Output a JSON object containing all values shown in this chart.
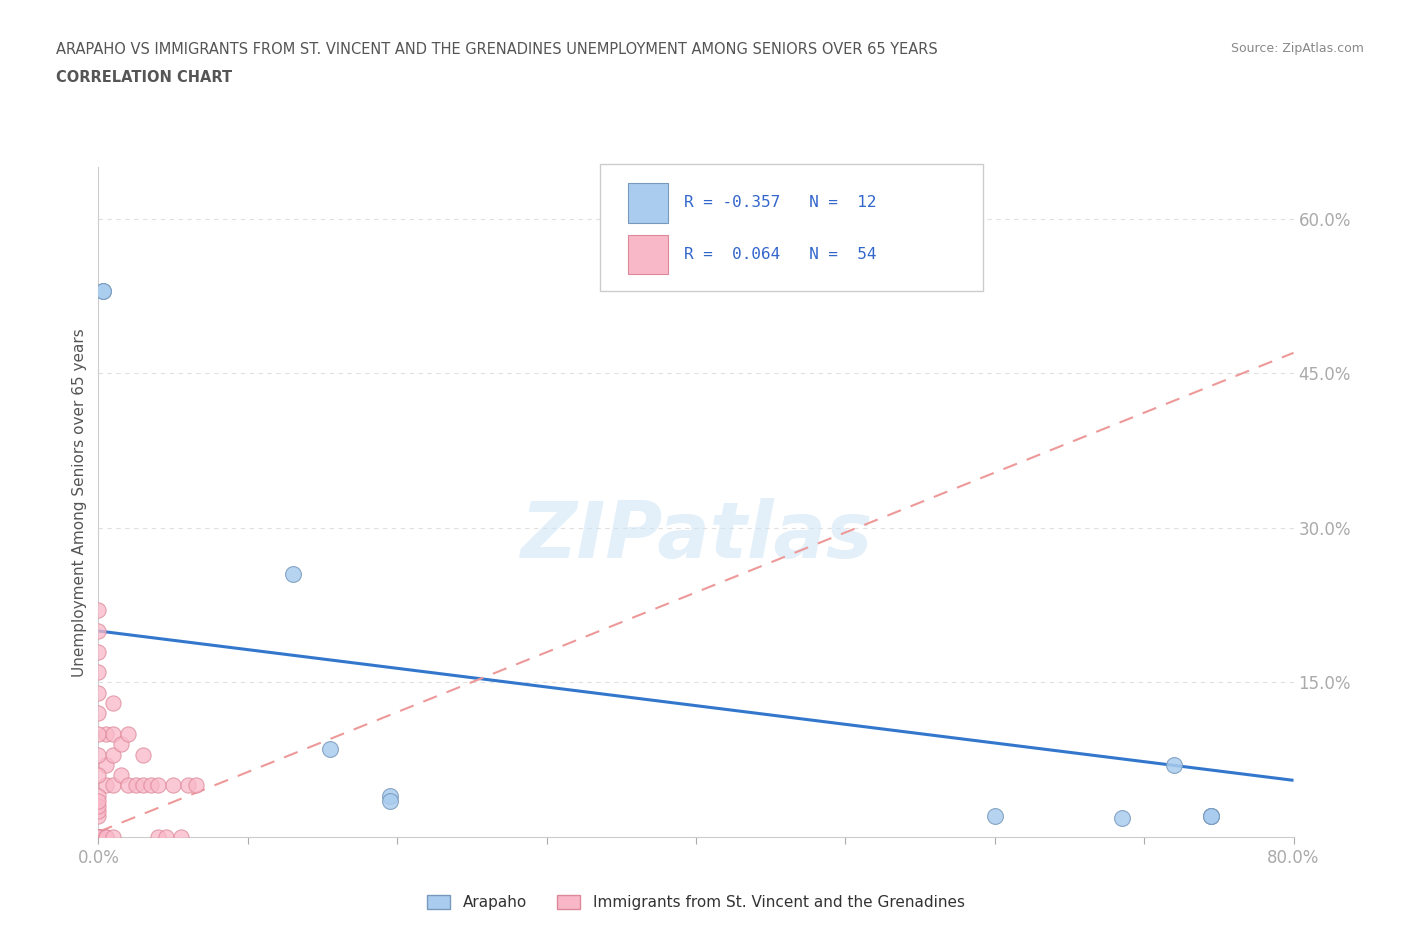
{
  "title_line1": "ARAPAHO VS IMMIGRANTS FROM ST. VINCENT AND THE GRENADINES UNEMPLOYMENT AMONG SENIORS OVER 65 YEARS",
  "title_line2": "CORRELATION CHART",
  "source_text": "Source: ZipAtlas.com",
  "ylabel": "Unemployment Among Seniors over 65 years",
  "xlim": [
    0.0,
    0.8
  ],
  "ylim": [
    0.0,
    0.65
  ],
  "xticks": [
    0.0,
    0.1,
    0.2,
    0.3,
    0.4,
    0.5,
    0.6,
    0.7,
    0.8
  ],
  "xticklabels": [
    "0.0%",
    "",
    "",
    "",
    "",
    "",
    "",
    "",
    "80.0%"
  ],
  "ytick_positions": [
    0.15,
    0.3,
    0.45,
    0.6
  ],
  "ytick_labels": [
    "15.0%",
    "30.0%",
    "45.0%",
    "60.0%"
  ],
  "grid_color": "#e0e0e0",
  "watermark": "ZIPatlas",
  "arapaho_color": "#aaccee",
  "immigrant_color": "#f9b8c8",
  "arapaho_edge": "#7799bb",
  "immigrant_edge": "#dd8899",
  "trend_arapaho_color": "#3377cc",
  "trend_immigrant_color": "#ee9999",
  "background_color": "#ffffff",
  "title_color": "#555555",
  "legend_text_color": "#3366cc",
  "tick_label_color": "#4477cc",
  "arapaho_x": [
    0.003,
    0.003,
    0.13,
    0.155,
    0.195,
    0.195,
    0.6,
    0.685,
    0.72,
    0.745,
    0.745,
    0.745
  ],
  "arapaho_y": [
    0.53,
    0.53,
    0.255,
    0.085,
    0.04,
    0.035,
    0.02,
    0.018,
    0.07,
    0.02,
    0.02,
    0.02
  ],
  "immigrant_x": [
    0.0,
    0.0,
    0.0,
    0.0,
    0.0,
    0.0,
    0.0,
    0.0,
    0.0,
    0.0,
    0.0,
    0.0,
    0.0,
    0.0,
    0.0,
    0.005,
    0.005,
    0.005,
    0.005,
    0.005,
    0.01,
    0.01,
    0.01,
    0.01,
    0.01,
    0.015,
    0.015,
    0.02,
    0.02,
    0.025,
    0.03,
    0.03,
    0.035,
    0.04,
    0.04,
    0.045,
    0.05,
    0.055,
    0.06,
    0.065,
    0.0,
    0.0,
    0.0,
    0.0,
    0.0,
    0.0,
    0.0,
    0.0,
    0.0,
    0.0,
    0.0,
    0.0,
    0.0,
    0.0
  ],
  "immigrant_y": [
    0.0,
    0.0,
    0.0,
    0.0,
    0.0,
    0.0,
    0.0,
    0.0,
    0.0,
    0.0,
    0.0,
    0.0,
    0.0,
    0.0,
    0.0,
    0.0,
    0.0,
    0.05,
    0.07,
    0.1,
    0.0,
    0.05,
    0.08,
    0.1,
    0.13,
    0.06,
    0.09,
    0.05,
    0.1,
    0.05,
    0.05,
    0.08,
    0.05,
    0.0,
    0.05,
    0.0,
    0.05,
    0.0,
    0.05,
    0.05,
    0.12,
    0.14,
    0.16,
    0.18,
    0.2,
    0.22,
    0.06,
    0.08,
    0.1,
    0.04,
    0.02,
    0.025,
    0.03,
    0.035
  ],
  "arapaho_trend_x": [
    0.0,
    0.8
  ],
  "arapaho_trend_y": [
    0.2,
    0.055
  ],
  "immigrant_trend_x": [
    0.0,
    0.8
  ],
  "immigrant_trend_y": [
    0.005,
    0.47
  ]
}
